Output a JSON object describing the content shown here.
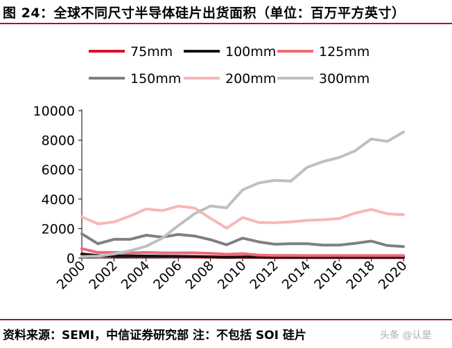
{
  "title": "图 24：全球不同尺寸半导体硅片出货面积（单位：百万平方英寸）",
  "footer": {
    "source": "资料来源：SEMI，中信证券研究部 注：不包括 SOI 硅片",
    "watermark": "头条 @认是"
  },
  "colors": {
    "accent": "#b00e23"
  },
  "chart_data": {
    "type": "line",
    "title": "",
    "xlabel": "",
    "ylabel": "",
    "ylim": [
      0,
      10000
    ],
    "yticks": [
      0,
      2000,
      4000,
      6000,
      8000,
      10000
    ],
    "xticks": [
      2000,
      2002,
      2004,
      2006,
      2008,
      2010,
      2012,
      2014,
      2016,
      2018,
      2020
    ],
    "grid": false,
    "legend_position": "top",
    "x": [
      2000,
      2001,
      2002,
      2003,
      2004,
      2005,
      2006,
      2007,
      2008,
      2009,
      2010,
      2011,
      2012,
      2013,
      2014,
      2015,
      2016,
      2017,
      2018,
      2019,
      2020
    ],
    "series": [
      {
        "name": "75mm",
        "color": "#d8112a",
        "values": [
          250,
          150,
          120,
          110,
          100,
          90,
          80,
          70,
          60,
          40,
          50,
          40,
          30,
          30,
          30,
          30,
          30,
          30,
          30,
          30,
          30
        ]
      },
      {
        "name": "100mm",
        "color": "#1a1010",
        "values": [
          280,
          170,
          150,
          150,
          140,
          130,
          120,
          110,
          90,
          60,
          80,
          70,
          60,
          50,
          50,
          50,
          50,
          50,
          50,
          50,
          50
        ]
      },
      {
        "name": "125mm",
        "color": "#ee6a76",
        "values": [
          640,
          380,
          380,
          350,
          380,
          350,
          350,
          350,
          320,
          260,
          300,
          200,
          180,
          180,
          170,
          170,
          170,
          170,
          170,
          170,
          170
        ]
      },
      {
        "name": "150mm",
        "color": "#7f7f7f",
        "values": [
          1650,
          970,
          1270,
          1270,
          1550,
          1420,
          1600,
          1500,
          1250,
          900,
          1350,
          1100,
          940,
          970,
          970,
          880,
          880,
          1000,
          1150,
          850,
          780
        ]
      },
      {
        "name": "200mm",
        "color": "#f7b7b8",
        "values": [
          2800,
          2320,
          2450,
          2850,
          3330,
          3220,
          3520,
          3400,
          2700,
          2030,
          2750,
          2420,
          2400,
          2450,
          2560,
          2600,
          2680,
          3050,
          3300,
          3000,
          2950
        ]
      },
      {
        "name": "300mm",
        "color": "#bfbfbf",
        "values": [
          100,
          130,
          280,
          500,
          800,
          1350,
          2200,
          3000,
          3530,
          3410,
          4630,
          5100,
          5270,
          5220,
          6150,
          6550,
          6820,
          7280,
          8080,
          7920,
          8550
        ]
      }
    ]
  }
}
